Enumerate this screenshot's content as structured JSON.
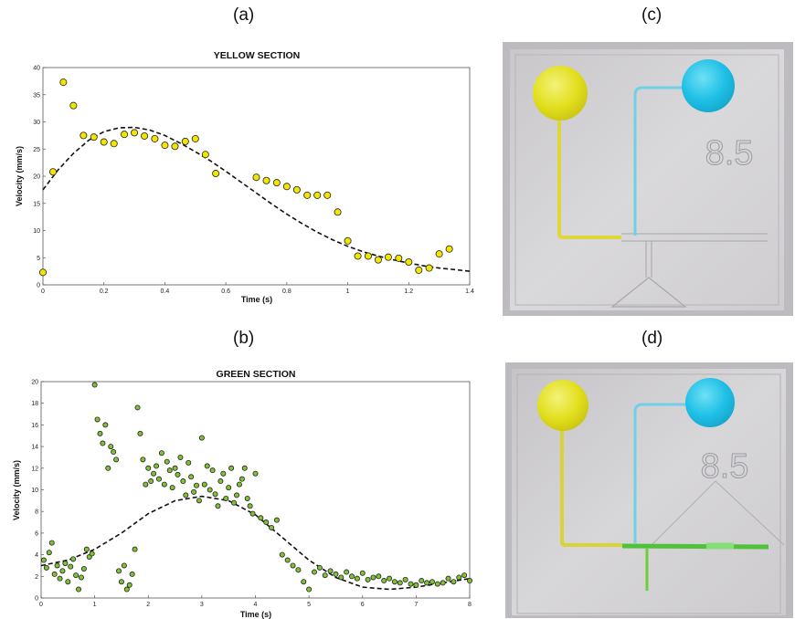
{
  "panel_labels": {
    "a": "(a)",
    "b": "(b)",
    "c": "(c)",
    "d": "(d)"
  },
  "chart_data": [
    {
      "type": "scatter",
      "title": "YELLOW SECTION",
      "xlabel": "Time (s)",
      "ylabel": "Velocity (mm/s)",
      "xlim": [
        0,
        1.4
      ],
      "ylim": [
        0,
        40
      ],
      "xticks": [
        "0",
        "0.2",
        "0.4",
        "0.6",
        "0.8",
        "1",
        "1.2",
        "1.4"
      ],
      "yticks": [
        "0",
        "5",
        "10",
        "15",
        "20",
        "25",
        "30",
        "35",
        "40"
      ],
      "grid": false,
      "marker_color": "#f2e600",
      "series": [
        {
          "x": [
            0.0,
            0.033,
            0.067,
            0.1,
            0.133,
            0.167,
            0.2,
            0.233,
            0.267,
            0.3,
            0.333,
            0.367,
            0.4,
            0.433,
            0.467,
            0.5,
            0.533,
            0.567,
            0.7,
            0.733,
            0.767,
            0.8,
            0.833,
            0.867,
            0.9,
            0.933,
            0.967,
            1.0,
            1.033,
            1.067,
            1.1,
            1.133,
            1.167,
            1.2,
            1.233,
            1.267,
            1.3,
            1.333
          ],
          "y": [
            2.3,
            20.8,
            37.3,
            33.0,
            27.5,
            27.2,
            26.3,
            26.0,
            27.7,
            28.0,
            27.4,
            26.9,
            25.7,
            25.5,
            26.4,
            26.9,
            24.0,
            20.5,
            19.8,
            19.2,
            18.8,
            18.1,
            17.5,
            16.5,
            16.5,
            16.5,
            13.4,
            8.1,
            5.3,
            5.3,
            4.6,
            5.1,
            4.9,
            4.2,
            2.7,
            3.1,
            5.7,
            6.6
          ]
        },
        {
          "x": [
            0.0,
            0.05,
            0.1,
            0.15,
            0.2,
            0.25,
            0.3,
            0.35,
            0.4,
            0.45,
            0.5,
            0.55,
            0.6,
            0.65,
            0.7,
            0.75,
            0.8,
            0.85,
            0.9,
            0.95,
            1.0,
            1.05,
            1.1,
            1.15,
            1.2,
            1.25,
            1.3,
            1.35,
            1.4
          ],
          "y": [
            17.5,
            21.2,
            24.2,
            26.6,
            28.2,
            28.9,
            29.0,
            28.5,
            27.5,
            26.1,
            24.5,
            22.8,
            20.9,
            18.9,
            16.9,
            14.9,
            13.0,
            11.3,
            9.7,
            8.3,
            7.1,
            6.1,
            5.3,
            4.6,
            4.0,
            3.5,
            3.1,
            2.8,
            2.5
          ]
        }
      ]
    },
    {
      "type": "scatter",
      "title": "GREEN SECTION",
      "xlabel": "Time (s)",
      "ylabel": "Velocity (mm/s)",
      "xlim": [
        0,
        8
      ],
      "ylim": [
        0,
        20
      ],
      "xticks": [
        "0",
        "1",
        "2",
        "3",
        "4",
        "5",
        "6",
        "7",
        "8"
      ],
      "yticks": [
        "0",
        "2",
        "4",
        "6",
        "8",
        "10",
        "12",
        "14",
        "16",
        "18",
        "20"
      ],
      "grid": false,
      "marker_color": "#7fc234",
      "series": [
        {
          "x": [
            0.05,
            0.1,
            0.15,
            0.2,
            0.25,
            0.3,
            0.35,
            0.4,
            0.45,
            0.5,
            0.55,
            0.6,
            0.65,
            0.7,
            0.75,
            0.8,
            0.85,
            0.9,
            0.95,
            1.0,
            1.05,
            1.1,
            1.15,
            1.2,
            1.25,
            1.3,
            1.35,
            1.4,
            1.45,
            1.5,
            1.55,
            1.6,
            1.65,
            1.7,
            1.75,
            1.8,
            1.85,
            1.9,
            1.95,
            2.0,
            2.05,
            2.1,
            2.15,
            2.2,
            2.25,
            2.3,
            2.35,
            2.4,
            2.45,
            2.5,
            2.55,
            2.6,
            2.65,
            2.7,
            2.75,
            2.8,
            2.85,
            2.9,
            2.95,
            3.0,
            3.05,
            3.1,
            3.15,
            3.2,
            3.25,
            3.3,
            3.35,
            3.4,
            3.45,
            3.5,
            3.55,
            3.6,
            3.65,
            3.7,
            3.75,
            3.8,
            3.85,
            3.9,
            3.95,
            4.0,
            4.1,
            4.2,
            4.3,
            4.4,
            4.5,
            4.6,
            4.7,
            4.8,
            4.9,
            5.0,
            5.1,
            5.2,
            5.3,
            5.4,
            5.5,
            5.6,
            5.7,
            5.8,
            5.9,
            6.0,
            6.1,
            6.2,
            6.3,
            6.4,
            6.5,
            6.6,
            6.7,
            6.8,
            6.9,
            7.0,
            7.1,
            7.2,
            7.3,
            7.4,
            7.5,
            7.6,
            7.7,
            7.8,
            7.9,
            8.0
          ],
          "y": [
            3.5,
            2.8,
            4.2,
            5.1,
            2.2,
            3.0,
            1.8,
            2.5,
            3.2,
            1.5,
            2.9,
            3.6,
            2.1,
            0.8,
            1.9,
            2.7,
            4.5,
            3.8,
            4.1,
            19.7,
            16.5,
            15.2,
            14.3,
            16.0,
            12.0,
            14.0,
            13.5,
            12.8,
            2.5,
            1.5,
            3.0,
            0.8,
            1.2,
            2.2,
            4.5,
            17.6,
            15.2,
            12.8,
            10.5,
            12.0,
            10.8,
            11.5,
            12.2,
            11.0,
            13.4,
            10.5,
            12.6,
            11.8,
            10.2,
            12.0,
            11.4,
            13.0,
            10.8,
            9.5,
            12.5,
            11.2,
            9.8,
            10.4,
            9.0,
            14.8,
            10.5,
            12.2,
            10.0,
            11.8,
            9.6,
            8.5,
            10.8,
            11.5,
            9.2,
            10.2,
            12.0,
            8.8,
            9.5,
            10.5,
            11.0,
            12.0,
            9.2,
            8.5,
            7.8,
            11.5,
            7.4,
            7.0,
            6.5,
            7.2,
            4.0,
            3.5,
            3.0,
            2.6,
            1.5,
            0.8,
            2.4,
            2.8,
            2.1,
            2.5,
            2.2,
            1.9,
            2.4,
            2.0,
            1.8,
            2.3,
            1.7,
            1.9,
            2.0,
            1.6,
            1.8,
            1.5,
            1.4,
            1.7,
            1.3,
            1.2,
            1.6,
            1.4,
            1.5,
            1.3,
            1.4,
            1.8,
            1.5,
            1.9,
            2.1,
            1.6
          ]
        },
        {
          "x": [
            0.0,
            0.5,
            1.0,
            1.5,
            2.0,
            2.5,
            3.0,
            3.5,
            4.0,
            4.5,
            5.0,
            5.5,
            6.0,
            6.5,
            7.0,
            7.5,
            8.0
          ],
          "y": [
            3.0,
            3.5,
            4.5,
            6.0,
            7.8,
            9.0,
            9.4,
            9.0,
            7.7,
            5.6,
            3.5,
            1.9,
            1.0,
            0.8,
            1.0,
            1.4,
            1.8
          ]
        }
      ]
    }
  ]
}
